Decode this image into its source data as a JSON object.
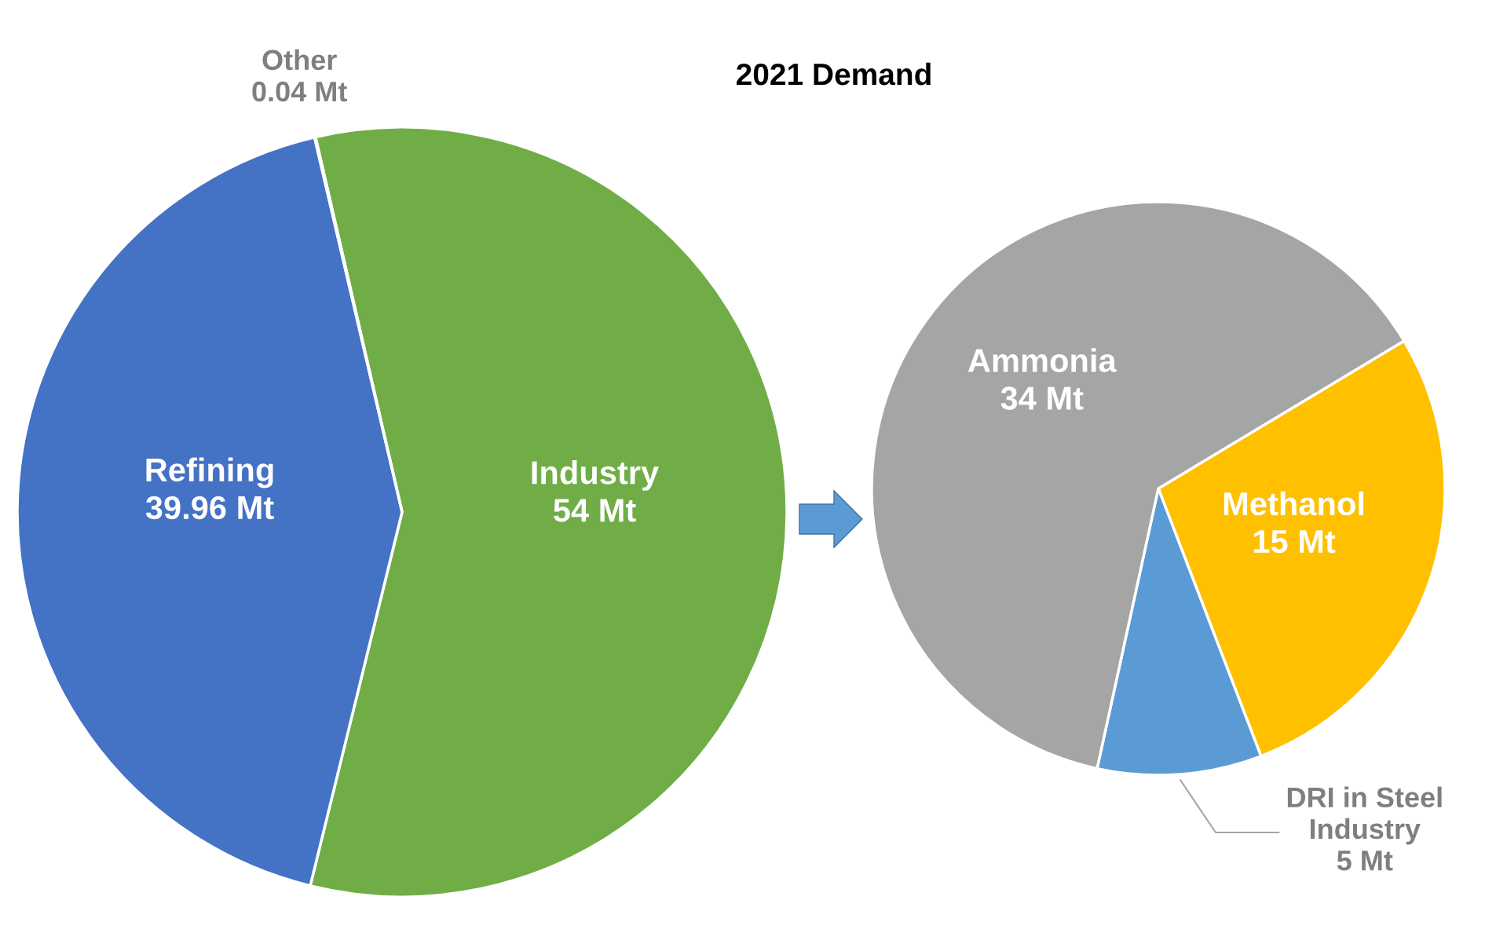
{
  "chart_data": [
    {
      "type": "pie",
      "title": "2021 Demand",
      "categories": [
        "Industry",
        "Refining",
        "Other"
      ],
      "values": [
        54,
        39.96,
        0.04
      ],
      "colors": [
        "#70ad47",
        "#4472c4",
        "#a5a5a5"
      ],
      "value_labels": [
        "54 Mt",
        "39.96 Mt",
        "0.04 Mt"
      ],
      "legend": false
    },
    {
      "type": "pie",
      "categories": [
        "Methanol",
        "DRI in Steel Industry",
        "Ammonia"
      ],
      "values": [
        15,
        5,
        34
      ],
      "colors": [
        "#ffc000",
        "#5b9bd5",
        "#a5a5a5"
      ],
      "value_labels": [
        "15 Mt",
        "5 Mt",
        "34 Mt"
      ],
      "legend": false
    }
  ]
}
